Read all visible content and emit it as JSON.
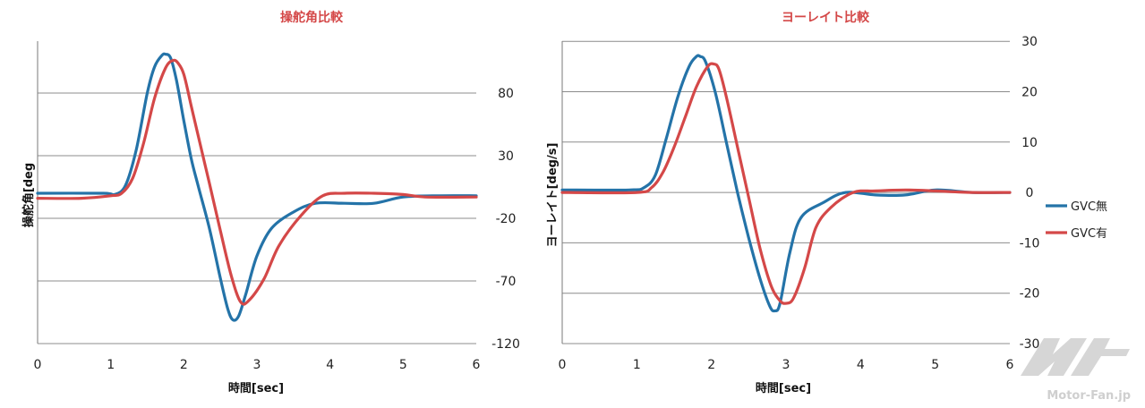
{
  "chart_data": [
    {
      "type": "line",
      "title": "操舵角比較",
      "xlabel": "時間[sec]",
      "ylabel": "操舵角[deg",
      "xlim": [
        0,
        6
      ],
      "ylim": [
        -120,
        120
      ],
      "x_ticks": [
        "0",
        "1",
        "2",
        "3",
        "4",
        "5",
        "6"
      ],
      "y_ticks": [
        "80",
        "30",
        "-20",
        "-70",
        "-120"
      ],
      "y_tick_values": [
        80,
        30,
        -20,
        -70,
        -120
      ],
      "grid": true,
      "series": [
        {
          "name": "GVC無",
          "color": "#2473a8",
          "x": [
            0,
            0.9,
            1.05,
            1.2,
            1.35,
            1.5,
            1.6,
            1.7,
            1.75,
            1.82,
            1.9,
            2.0,
            2.1,
            2.2,
            2.35,
            2.5,
            2.6,
            2.67,
            2.75,
            2.85,
            3.0,
            3.2,
            3.5,
            3.8,
            4.2,
            4.6,
            5.0,
            5.5,
            6.0
          ],
          "y": [
            0,
            0,
            -1,
            6,
            35,
            80,
            101,
            110,
            111,
            108,
            90,
            58,
            28,
            5,
            -28,
            -68,
            -92,
            -101,
            -98,
            -80,
            -50,
            -28,
            -15,
            -8,
            -8,
            -8,
            -3,
            -2,
            -2
          ]
        },
        {
          "name": "GVC有",
          "color": "#d44848",
          "x": [
            0,
            0.6,
            1.0,
            1.15,
            1.3,
            1.45,
            1.6,
            1.75,
            1.85,
            1.92,
            2.0,
            2.1,
            2.2,
            2.35,
            2.5,
            2.65,
            2.78,
            2.9,
            3.1,
            3.3,
            3.6,
            3.9,
            4.2,
            4.6,
            5.0,
            5.3,
            6.0
          ],
          "y": [
            -4,
            -4,
            -2,
            0,
            12,
            40,
            76,
            100,
            106,
            104,
            95,
            70,
            45,
            8,
            -30,
            -66,
            -87,
            -85,
            -68,
            -42,
            -18,
            -2,
            0,
            0,
            -1,
            -3,
            -3
          ]
        }
      ]
    },
    {
      "type": "line",
      "title": "ヨーレイト比較",
      "xlabel": "時間[sec]",
      "ylabel": "ヨーレイト[deg/s]",
      "xlim": [
        0,
        6
      ],
      "ylim": [
        -30,
        30
      ],
      "x_ticks": [
        "0",
        "1",
        "2",
        "3",
        "4",
        "5",
        "6"
      ],
      "y_ticks": [
        "30",
        "20",
        "10",
        "0",
        "-10",
        "-20",
        "-30"
      ],
      "y_tick_values": [
        30,
        20,
        10,
        0,
        -10,
        -20,
        -30
      ],
      "grid": true,
      "legend": "right",
      "series": [
        {
          "name": "GVC無",
          "color": "#2473a8",
          "x": [
            0,
            0.9,
            1.1,
            1.25,
            1.4,
            1.55,
            1.7,
            1.8,
            1.85,
            1.92,
            2.05,
            2.2,
            2.35,
            2.5,
            2.65,
            2.78,
            2.85,
            2.92,
            3.05,
            3.2,
            3.5,
            3.8,
            4.2,
            4.6,
            5.0,
            5.5,
            6.0
          ],
          "y": [
            0.5,
            0.5,
            1,
            3.5,
            11,
            19,
            25,
            27,
            27,
            26,
            20,
            10,
            0,
            -9,
            -17,
            -22.5,
            -23.5,
            -22,
            -12,
            -5,
            -2,
            0,
            -0.5,
            -0.5,
            0.5,
            0,
            0
          ]
        },
        {
          "name": "GVC有",
          "color": "#d44848",
          "x": [
            0,
            1.0,
            1.2,
            1.35,
            1.5,
            1.65,
            1.8,
            1.95,
            2.03,
            2.1,
            2.2,
            2.35,
            2.5,
            2.65,
            2.8,
            2.92,
            3.0,
            3.1,
            3.25,
            3.4,
            3.6,
            3.9,
            4.2,
            4.6,
            5.0,
            5.5,
            6.0
          ],
          "y": [
            0,
            0,
            1,
            4,
            9,
            15,
            21,
            25,
            25.5,
            24.5,
            19,
            9,
            -1,
            -11,
            -18.5,
            -21.5,
            -22,
            -21,
            -15,
            -7,
            -3,
            0,
            0.3,
            0.5,
            0.3,
            0,
            0
          ]
        }
      ]
    }
  ],
  "legend_items": [
    {
      "label": "GVC無",
      "color": "#2473a8"
    },
    {
      "label": "GVC有",
      "color": "#d44848"
    }
  ],
  "title_color": "#d44848",
  "watermark": "Motor-Fan.jp"
}
